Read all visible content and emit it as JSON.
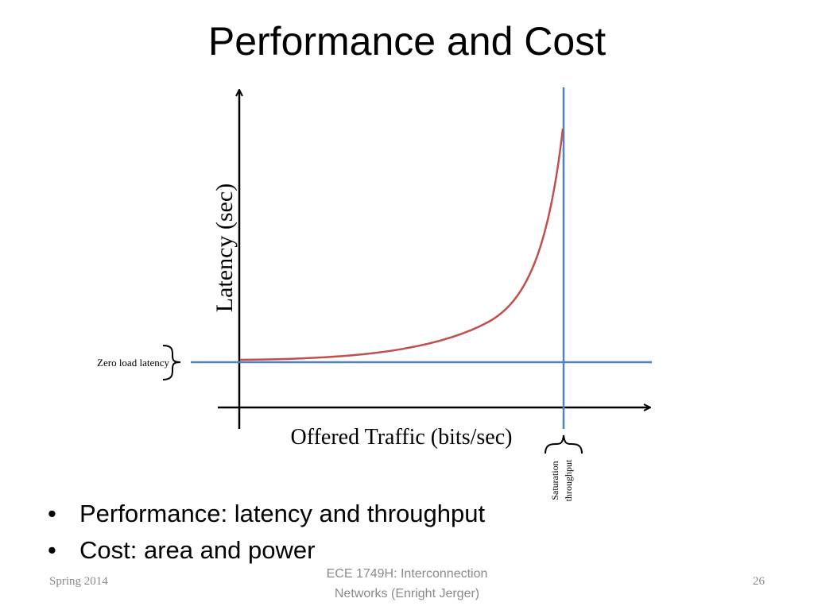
{
  "slide": {
    "title": "Performance and Cost",
    "bullets": [
      "Performance: latency and throughput",
      "Cost: area and power"
    ]
  },
  "diagram": {
    "y_axis_label": "Latency (sec)",
    "x_axis_label": "Offered Traffic (bits/sec)",
    "zero_load_label": "Zero load latency",
    "saturation_label_line1": "Saturation",
    "saturation_label_line2": "throughput",
    "colors": {
      "axis": "#000000",
      "reference_lines": "#4f81bd",
      "curve": "#c0504d"
    }
  },
  "footer": {
    "left": "Spring 2014",
    "center_line1": "ECE 1749H: Interconnection",
    "center_line2": "Networks (Enright Jerger)",
    "page_number": "26"
  }
}
